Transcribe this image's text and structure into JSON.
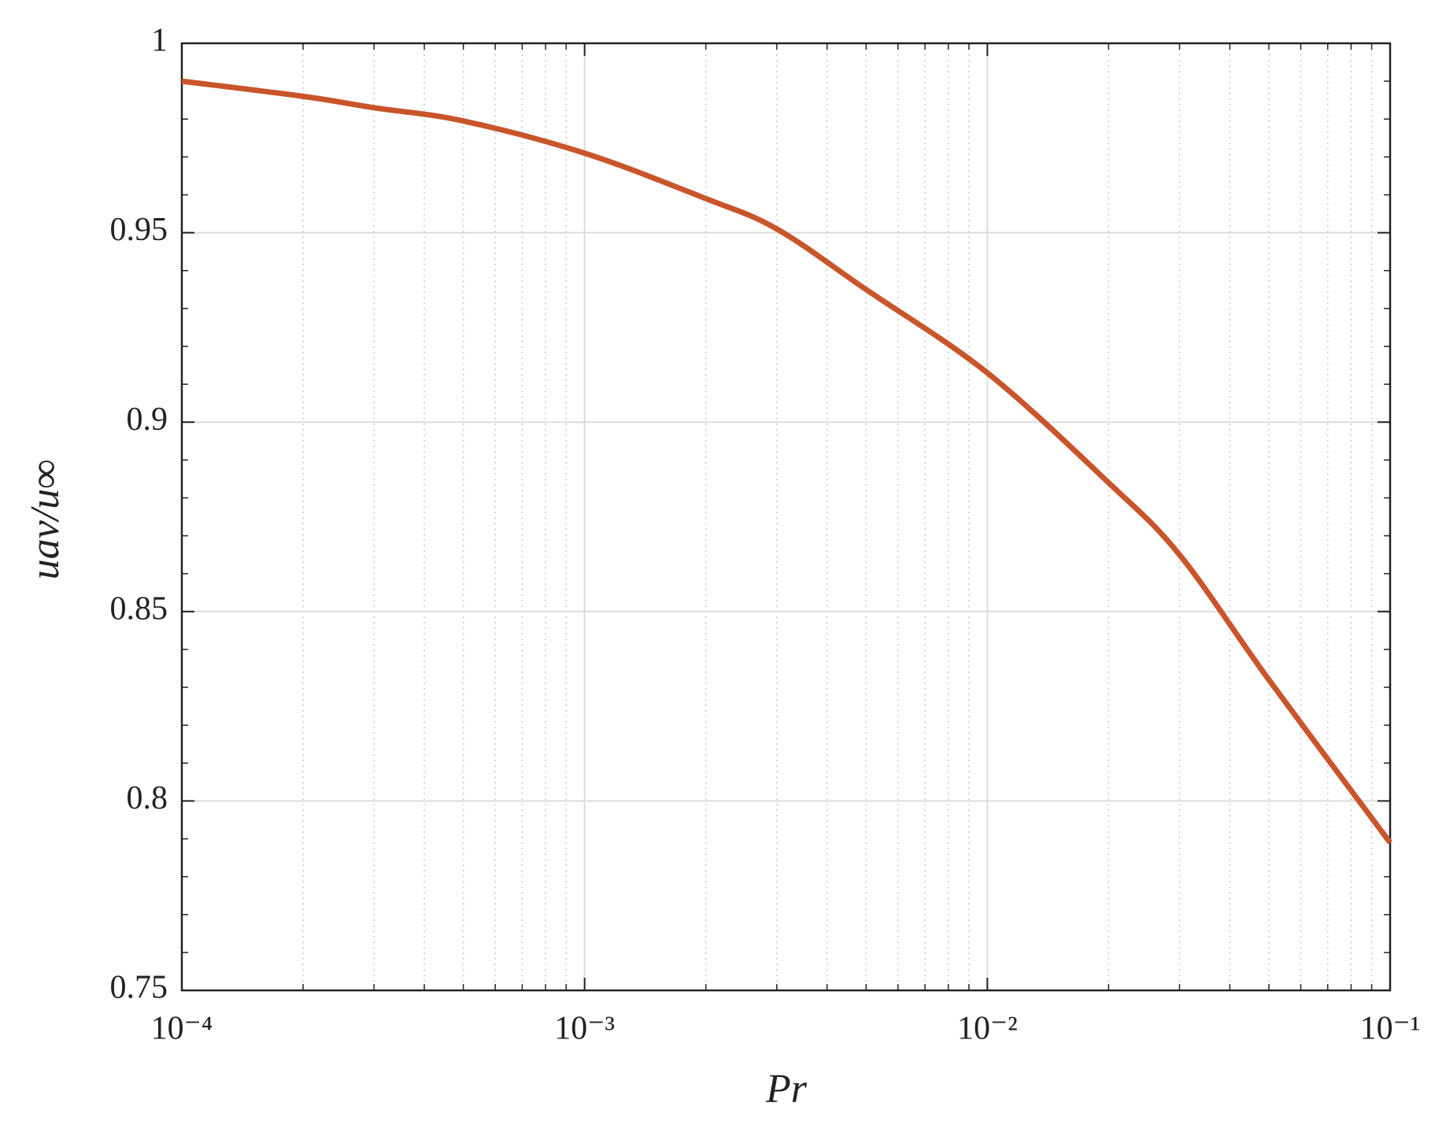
{
  "chart_data": {
    "type": "line",
    "xlabel": "Pr",
    "ylabel": "uav/u∞",
    "x": [
      0.0001,
      0.0002,
      0.0003,
      0.0005,
      0.001,
      0.002,
      0.003,
      0.005,
      0.01,
      0.02,
      0.03,
      0.05,
      0.1
    ],
    "values": [
      0.99,
      0.986,
      0.983,
      0.9795,
      0.971,
      0.959,
      0.951,
      0.935,
      0.913,
      0.884,
      0.865,
      0.832,
      0.789
    ],
    "color": "#c9552a",
    "xscale": "log",
    "xlim": [
      0.0001,
      0.1
    ],
    "xticks": [
      {
        "value": 0.0001,
        "label": "10⁻⁴"
      },
      {
        "value": 0.001,
        "label": "10⁻³"
      },
      {
        "value": 0.01,
        "label": "10⁻²"
      },
      {
        "value": 0.1,
        "label": "10⁻¹"
      }
    ],
    "ylim": [
      0.75,
      1
    ],
    "yticks": [
      0.75,
      0.8,
      0.85,
      0.9,
      0.95,
      1
    ],
    "grid": true,
    "minor_grid": true
  }
}
